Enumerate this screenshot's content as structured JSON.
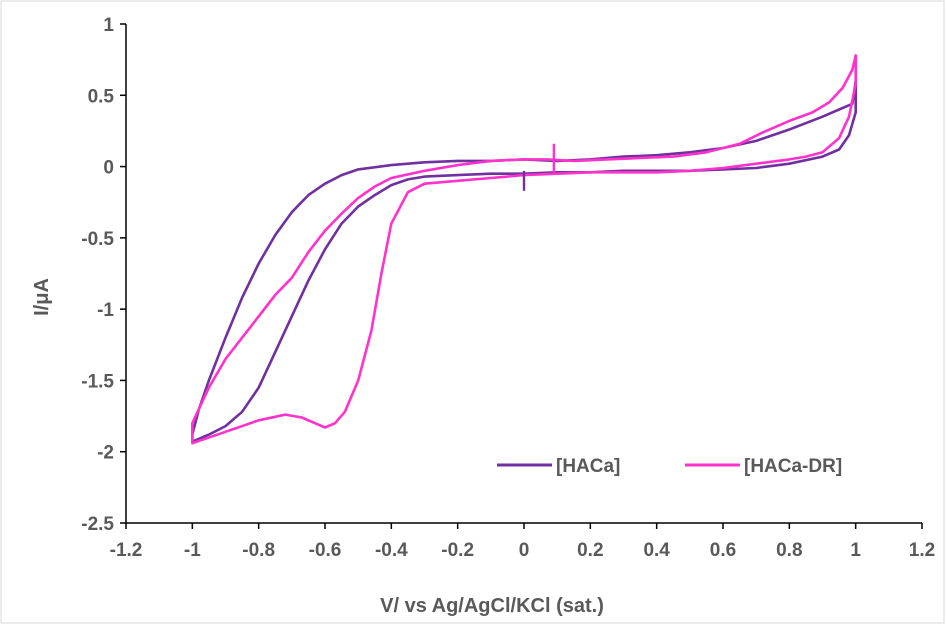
{
  "chart_data": {
    "type": "line",
    "title": "",
    "xlabel": "V/ vs Ag/AgCl/KCl (sat.)",
    "ylabel": "I/μA",
    "xlim": [
      -1.2,
      1.2
    ],
    "ylim": [
      -2.5,
      1
    ],
    "x_ticks": [
      -1.2,
      -1,
      -0.8,
      -0.6,
      -0.4,
      -0.2,
      0,
      0.2,
      0.4,
      0.6,
      0.8,
      1,
      1.2
    ],
    "x_tick_labels": [
      "-1.2",
      "-1",
      "-0.8",
      "-0.6",
      "-0.4",
      "-0.2",
      "0",
      "0.2",
      "0.4",
      "0.6",
      "0.8",
      "1",
      "1.2"
    ],
    "y_ticks": [
      -2.5,
      -2,
      -1.5,
      -1,
      -0.5,
      0,
      0.5,
      1
    ],
    "y_tick_labels": [
      "-2.5",
      "-2",
      "-1.5",
      "-1",
      "-0.5",
      "0",
      "0.5",
      "1"
    ],
    "grid": false,
    "legend_position": "bottom-right",
    "series": [
      {
        "name": "[HACa]",
        "color": "#7030a0",
        "points": [
          [
            0,
            0.05
          ],
          [
            0.1,
            0.04
          ],
          [
            0.2,
            0.05
          ],
          [
            0.3,
            0.07
          ],
          [
            0.4,
            0.08
          ],
          [
            0.5,
            0.1
          ],
          [
            0.6,
            0.13
          ],
          [
            0.7,
            0.18
          ],
          [
            0.8,
            0.26
          ],
          [
            0.9,
            0.35
          ],
          [
            0.95,
            0.4
          ],
          [
            0.99,
            0.44
          ],
          [
            1,
            0.6
          ],
          [
            1,
            0.38
          ],
          [
            0.98,
            0.22
          ],
          [
            0.95,
            0.12
          ],
          [
            0.9,
            0.07
          ],
          [
            0.8,
            0.02
          ],
          [
            0.7,
            -0.01
          ],
          [
            0.6,
            -0.02
          ],
          [
            0.5,
            -0.03
          ],
          [
            0.4,
            -0.03
          ],
          [
            0.3,
            -0.03
          ],
          [
            0.2,
            -0.04
          ],
          [
            0.1,
            -0.04
          ],
          [
            0,
            -0.05
          ],
          [
            -0.1,
            -0.05
          ],
          [
            -0.2,
            -0.06
          ],
          [
            -0.3,
            -0.07
          ],
          [
            -0.35,
            -0.09
          ],
          [
            -0.4,
            -0.13
          ],
          [
            -0.45,
            -0.2
          ],
          [
            -0.5,
            -0.28
          ],
          [
            -0.55,
            -0.4
          ],
          [
            -0.6,
            -0.58
          ],
          [
            -0.65,
            -0.8
          ],
          [
            -0.7,
            -1.05
          ],
          [
            -0.75,
            -1.3
          ],
          [
            -0.8,
            -1.55
          ],
          [
            -0.85,
            -1.72
          ],
          [
            -0.9,
            -1.82
          ],
          [
            -0.95,
            -1.88
          ],
          [
            -1,
            -1.93
          ],
          [
            -1,
            -1.88
          ],
          [
            -0.98,
            -1.7
          ],
          [
            -0.95,
            -1.5
          ],
          [
            -0.9,
            -1.2
          ],
          [
            -0.85,
            -0.92
          ],
          [
            -0.8,
            -0.68
          ],
          [
            -0.75,
            -0.48
          ],
          [
            -0.7,
            -0.32
          ],
          [
            -0.65,
            -0.2
          ],
          [
            -0.6,
            -0.12
          ],
          [
            -0.55,
            -0.06
          ],
          [
            -0.5,
            -0.02
          ],
          [
            -0.4,
            0.01
          ],
          [
            -0.3,
            0.03
          ],
          [
            -0.2,
            0.04
          ],
          [
            -0.1,
            0.04
          ],
          [
            0,
            0.05
          ]
        ]
      },
      {
        "name": "[HACa-DR]",
        "color": "#ff33cc",
        "points": [
          [
            0.07,
            0.05
          ],
          [
            0.15,
            0.04
          ],
          [
            0.25,
            0.05
          ],
          [
            0.35,
            0.06
          ],
          [
            0.45,
            0.07
          ],
          [
            0.55,
            0.1
          ],
          [
            0.65,
            0.16
          ],
          [
            0.72,
            0.24
          ],
          [
            0.8,
            0.32
          ],
          [
            0.87,
            0.38
          ],
          [
            0.92,
            0.45
          ],
          [
            0.96,
            0.55
          ],
          [
            0.99,
            0.68
          ],
          [
            1,
            0.78
          ],
          [
            1,
            0.58
          ],
          [
            0.98,
            0.35
          ],
          [
            0.95,
            0.2
          ],
          [
            0.9,
            0.1
          ],
          [
            0.85,
            0.07
          ],
          [
            0.8,
            0.05
          ],
          [
            0.7,
            0.02
          ],
          [
            0.6,
            -0.01
          ],
          [
            0.5,
            -0.03
          ],
          [
            0.4,
            -0.04
          ],
          [
            0.3,
            -0.04
          ],
          [
            0.2,
            -0.04
          ],
          [
            0.1,
            -0.05
          ],
          [
            0,
            -0.06
          ],
          [
            -0.1,
            -0.08
          ],
          [
            -0.2,
            -0.1
          ],
          [
            -0.3,
            -0.12
          ],
          [
            -0.35,
            -0.18
          ],
          [
            -0.4,
            -0.4
          ],
          [
            -0.43,
            -0.75
          ],
          [
            -0.46,
            -1.15
          ],
          [
            -0.5,
            -1.5
          ],
          [
            -0.54,
            -1.72
          ],
          [
            -0.57,
            -1.8
          ],
          [
            -0.6,
            -1.83
          ],
          [
            -0.63,
            -1.8
          ],
          [
            -0.67,
            -1.76
          ],
          [
            -0.72,
            -1.74
          ],
          [
            -0.8,
            -1.78
          ],
          [
            -0.9,
            -1.86
          ],
          [
            -1,
            -1.94
          ],
          [
            -1,
            -1.8
          ],
          [
            -0.95,
            -1.55
          ],
          [
            -0.9,
            -1.35
          ],
          [
            -0.85,
            -1.2
          ],
          [
            -0.8,
            -1.05
          ],
          [
            -0.75,
            -0.9
          ],
          [
            -0.7,
            -0.78
          ],
          [
            -0.65,
            -0.6
          ],
          [
            -0.6,
            -0.45
          ],
          [
            -0.55,
            -0.33
          ],
          [
            -0.5,
            -0.22
          ],
          [
            -0.45,
            -0.14
          ],
          [
            -0.4,
            -0.08
          ],
          [
            -0.3,
            -0.03
          ],
          [
            -0.2,
            0.01
          ],
          [
            -0.1,
            0.04
          ],
          [
            0,
            0.05
          ],
          [
            0.07,
            0.05
          ]
        ]
      }
    ],
    "annotations": [
      {
        "type": "vertical-tick",
        "x": 0,
        "y_from": -0.03,
        "y_to": -0.17,
        "color": "#7030a0"
      },
      {
        "type": "vertical-tick",
        "x": 0.09,
        "y_from": 0.16,
        "y_to": -0.04,
        "color": "#ff33cc"
      }
    ]
  }
}
